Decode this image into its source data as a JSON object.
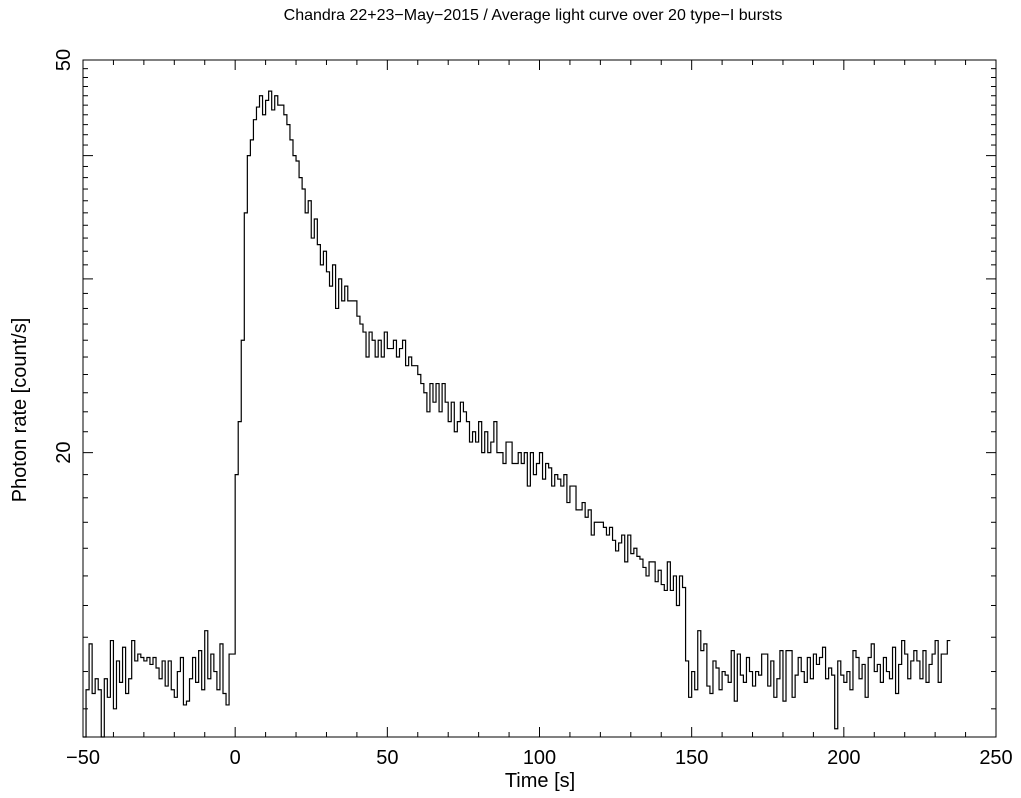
{
  "chart_data": {
    "type": "line",
    "step": true,
    "title": "Chandra 22+23−May−2015 / Average light curve over 20 type−I bursts",
    "xlabel": "Time [s]",
    "ylabel": "Photon rate [count/s]",
    "x_scale": "linear",
    "y_scale": "log",
    "xlim": [
      -50,
      250
    ],
    "ylim": [
      10.3,
      50
    ],
    "grid": false,
    "line_color": "#000000",
    "x_major_ticks": [
      -50,
      0,
      50,
      100,
      150,
      200,
      250
    ],
    "x_tick_labels": [
      "−50",
      "0",
      "50",
      "100",
      "150",
      "200",
      "250"
    ],
    "y_labeled_ticks": [
      20,
      50
    ],
    "y_tick_labels": [
      "20",
      "50"
    ],
    "y_minor_ticks": [
      30,
      40
    ],
    "bin_width": 1,
    "x_start": -50,
    "values": [
      10.3,
      11.5,
      12.8,
      11.4,
      11.8,
      11.5,
      10.3,
      11.8,
      11.3,
      12.9,
      11.0,
      12.3,
      11.7,
      12.7,
      11.4,
      11.8,
      12.9,
      12.3,
      12.5,
      12.4,
      12.3,
      12.4,
      12.2,
      12.4,
      12.1,
      11.8,
      12.3,
      11.6,
      12.3,
      11.5,
      11.3,
      12.0,
      12.4,
      11.1,
      11.2,
      11.8,
      12.4,
      11.7,
      12.6,
      11.5,
      13.2,
      11.8,
      12.5,
      12.0,
      11.5,
      12.8,
      11.4,
      11.1,
      12.5,
      12.5,
      12.7,
      12.8,
      12.6,
      13.2,
      14.1,
      10.9,
      13.3,
      12.4,
      12.1,
      12.0,
      11.8,
      11.8,
      11.3,
      12.7,
      12.0,
      12.4,
      12.5,
      11.6,
      12.6,
      11.2,
      12.9,
      11.9,
      11.8,
      13.0,
      12.8,
      13.3,
      12.4,
      13.6,
      11.4,
      12.7,
      12.8,
      11.6,
      12.2,
      13.3,
      12.0,
      12.2,
      12.8,
      13.0,
      13.4,
      12.8,
      11.8,
      12.7,
      11.6,
      11.9,
      12.4,
      12.3,
      11.6,
      12.0,
      12.5,
      12.8,
      12.6,
      11.2,
      12.5,
      11.5,
      12.3,
      12.1,
      11.8,
      12.6,
      11.5,
      11.5,
      12.3,
      11.6,
      11.1,
      11.9,
      12.9,
      12.4,
      11.9,
      12.9,
      11.6,
      11.9,
      11.3,
      12.6,
      11.9,
      12.1,
      12.8,
      11.8,
      12.3,
      11.7,
      12.1,
      12.9,
      11.6,
      12.5,
      11.6,
      12.6,
      12.2,
      11.7,
      12.5,
      11.6,
      12.0,
      11.0,
      12.2,
      12.2,
      12.3,
      12.5,
      12.0,
      12.8,
      12.2,
      11.8,
      12.2,
      10.3,
      11.0,
      12.4,
      12.1,
      11.6,
      12.8,
      11.8,
      12.5,
      13.0,
      11.9,
      12.4,
      11.5,
      12.0,
      11.7,
      12.3,
      13.1,
      11.5,
      12.9,
      12.1,
      11.8,
      12.4,
      11.7,
      11.5,
      12.3,
      12.2,
      11.8,
      12.5,
      12.6,
      11.9,
      11.3,
      12.0,
      12.6,
      11.7,
      11.9,
      12.4,
      12.0,
      11.5,
      12.4,
      12.0,
      12.8,
      13.0,
      11.6,
      12.3,
      11.5,
      12.0,
      12.5,
      11.8,
      12.6,
      11.9,
      12.3,
      11.3,
      12.0,
      11.5,
      13.2,
      12.6,
      12.8,
      11.6,
      11.4,
      12.3,
      12.1,
      11.5,
      12.0,
      11.9,
      11.7,
      12.6,
      11.2,
      12.5,
      11.9,
      11.7,
      12.4,
      12.0,
      11.6,
      12.0,
      11.9,
      12.5,
      12.5,
      11.6,
      12.3,
      11.3,
      11.8,
      12.6,
      11.2,
      12.6,
      12.6,
      11.3,
      11.9,
      12.4,
      12.0,
      11.7,
      12.4,
      11.8,
      12.5,
      12.2,
      12.4,
      12.7,
      11.8,
      12.1,
      11.9,
      10.5,
      12.3,
      11.9,
      11.7,
      12.0,
      11.5,
      12.6,
      12.4,
      11.8,
      12.2,
      11.3,
      12.4,
      12.8,
      12.0,
      12.2,
      11.7,
      12.4,
      12.0,
      11.8,
      12.7,
      11.4,
      12.2,
      12.9,
      12.5,
      11.8,
      12.3,
      12.6,
      12.3,
      11.8,
      12.6,
      11.7,
      12.2,
      12.5,
      12.9,
      11.7,
      12.5,
      12.5,
      12.9
    ],
    "burst_values_from_0": [
      19.0,
      21.5,
      26.0,
      35.0,
      40.0,
      41.5,
      43.5,
      44.8,
      46.0,
      44.0,
      45.5,
      46.5,
      44.5,
      46.0,
      45.0,
      45.0,
      44.0,
      43.0,
      41.5,
      40.0,
      39.5,
      38.0,
      37.0,
      35.0,
      36.0,
      33.0,
      34.5,
      32.5,
      31.0,
      32.0,
      30.5,
      29.5,
      31.0,
      28.0,
      30.0,
      28.5,
      29.5,
      28.5,
      28.5,
      28.5,
      27.5,
      27.0,
      26.5,
      25.0,
      26.5,
      26.0,
      25.0,
      26.0,
      25.0,
      26.5,
      25.5,
      25.5,
      26.0,
      25.0,
      25.5,
      26.0,
      24.5,
      25.0,
      24.5,
      24.5,
      24.0,
      23.5,
      23.0,
      22.0,
      23.5,
      22.5,
      23.5,
      22.0,
      23.5,
      22.5,
      21.5,
      22.5,
      21.0,
      21.5,
      22.5,
      22.0,
      21.5,
      20.5,
      21.0,
      20.5,
      21.5,
      20.0,
      21.0,
      20.0,
      20.5,
      21.5,
      20.0,
      20.0,
      19.5,
      20.5,
      20.5,
      19.5,
      19.5,
      20.0,
      19.5,
      20.0,
      18.5,
      20.0,
      19.0,
      19.5,
      20.0,
      18.8,
      19.5,
      19.3,
      18.5,
      19.0,
      18.8,
      18.5,
      19.0,
      17.8,
      18.5,
      18.5,
      17.5,
      17.5,
      17.8,
      17.2,
      17.5,
      16.5,
      17.0,
      17.0,
      17.0,
      16.8,
      16.5,
      16.8,
      16.3,
      15.9,
      16.2,
      16.5,
      15.5,
      16.5,
      15.8,
      16.0,
      15.7,
      15.6,
      15.3,
      15.0,
      15.5,
      15.5,
      14.8,
      15.2,
      14.7,
      14.5,
      15.5,
      14.5,
      15.0,
      14.0,
      15.0,
      14.6
    ]
  }
}
